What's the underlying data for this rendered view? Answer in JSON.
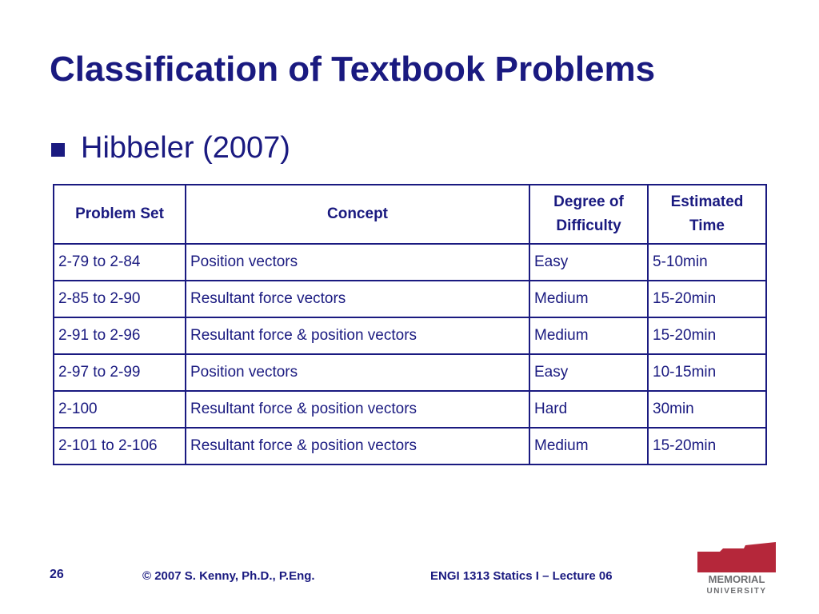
{
  "slide": {
    "title": "Classification of Textbook Problems",
    "bullet": "Hibbeler (2007)"
  },
  "table": {
    "headers": [
      "Problem Set",
      "Concept",
      "Degree of Difficulty",
      "Estimated Time"
    ],
    "rows": [
      [
        "2-79 to 2-84",
        "Position vectors",
        "Easy",
        "5-10min"
      ],
      [
        "2-85 to 2-90",
        "Resultant force vectors",
        "Medium",
        "15-20min"
      ],
      [
        "2-91 to 2-96",
        "Resultant force & position vectors",
        "Medium",
        "15-20min"
      ],
      [
        "2-97 to 2-99",
        "Position vectors",
        "Easy",
        "10-15min"
      ],
      [
        "2-100",
        "Resultant force & position vectors",
        "Hard",
        "30min"
      ],
      [
        "2-101 to 2-106",
        "Resultant force & position vectors",
        "Medium",
        "15-20min"
      ]
    ]
  },
  "footer": {
    "page_number": "26",
    "copyright": "© 2007 S. Kenny, Ph.D., P.Eng.",
    "course": "ENGI 1313 Statics I – Lecture 06"
  },
  "logo": {
    "line1": "MEMORIAL",
    "line2": "UNIVERSITY",
    "icon": "memorial-university-logo",
    "color_red": "#b5273a",
    "color_gray": "#6d6e71"
  },
  "colors": {
    "text": "#1a1a80"
  }
}
